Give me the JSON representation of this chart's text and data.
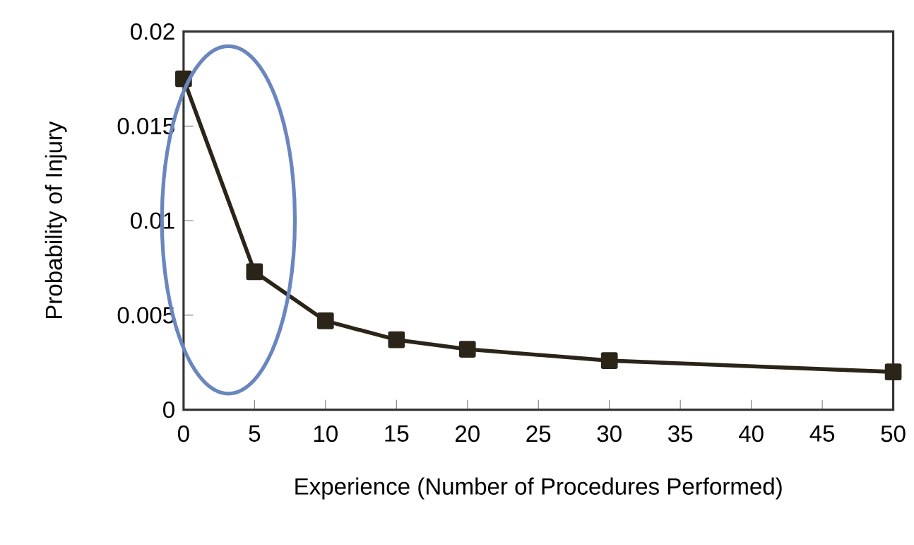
{
  "chart_data": {
    "type": "line",
    "xlabel": "Experience (Number of Procedures Performed)",
    "ylabel": "Probability of Injury",
    "x": [
      0,
      5,
      10,
      15,
      20,
      30,
      50
    ],
    "values": [
      0.0175,
      0.0073,
      0.0047,
      0.0037,
      0.0032,
      0.0026,
      0.002
    ],
    "color": "#2b2418",
    "marker": "square",
    "line_style": "solid",
    "xlim": [
      0,
      50
    ],
    "ylim": [
      0,
      0.02
    ],
    "xticks": [
      0,
      5,
      10,
      15,
      20,
      25,
      30,
      35,
      40,
      45,
      50
    ],
    "yticks": [
      0,
      0.005,
      0.01,
      0.015,
      0.02
    ]
  }
}
